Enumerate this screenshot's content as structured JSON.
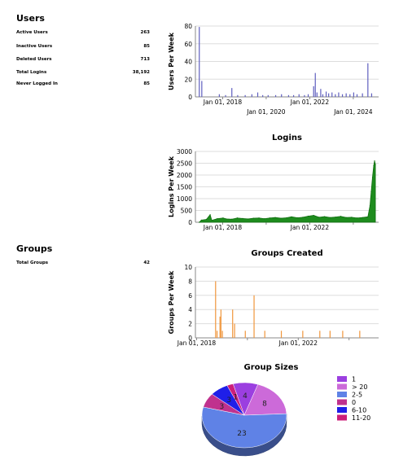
{
  "users": {
    "title": "Users",
    "stats": [
      {
        "label": "Active Users",
        "value": "263"
      },
      {
        "label": "Inactive Users",
        "value": "85"
      },
      {
        "label": "Deleted Users",
        "value": "713"
      },
      {
        "label": "Total Logins",
        "value": "38,192"
      },
      {
        "label": "Never Logged In",
        "value": "85"
      }
    ]
  },
  "groups": {
    "title": "Groups",
    "stats": [
      {
        "label": "Total Groups",
        "value": "42"
      }
    ]
  },
  "chart_data": [
    {
      "type": "bar",
      "title": "",
      "ylabel": "Users Per Week",
      "xlabel": "",
      "ylim": [
        0,
        80
      ],
      "yticks": [
        0,
        20,
        40,
        60,
        80
      ],
      "xticks": [
        "Jan 01, 2018",
        "Jan 01, 2020",
        "Jan 01, 2022",
        "Jan 01, 2024"
      ],
      "x_range": [
        "2016-10-01",
        "2025-03-01"
      ],
      "color": "#5f5fbf",
      "points": [
        [
          "2016-12-05",
          79
        ],
        [
          "2017-01-16",
          18
        ],
        [
          "2017-11-06",
          3
        ],
        [
          "2018-02-19",
          2
        ],
        [
          "2018-06-04",
          10
        ],
        [
          "2018-09-10",
          2
        ],
        [
          "2019-01-14",
          2
        ],
        [
          "2019-05-06",
          3
        ],
        [
          "2019-08-12",
          5
        ],
        [
          "2019-11-04",
          2
        ],
        [
          "2020-02-03",
          2
        ],
        [
          "2020-06-08",
          2
        ],
        [
          "2020-09-14",
          3
        ],
        [
          "2021-01-11",
          2
        ],
        [
          "2021-04-05",
          2
        ],
        [
          "2021-07-05",
          3
        ],
        [
          "2021-10-04",
          2
        ],
        [
          "2021-12-06",
          3
        ],
        [
          "2022-03-07",
          12
        ],
        [
          "2022-04-04",
          27
        ],
        [
          "2022-05-02",
          5
        ],
        [
          "2022-07-04",
          9
        ],
        [
          "2022-08-08",
          3
        ],
        [
          "2022-10-03",
          6
        ],
        [
          "2022-11-14",
          4
        ],
        [
          "2023-01-09",
          5
        ],
        [
          "2023-03-06",
          3
        ],
        [
          "2023-05-01",
          5
        ],
        [
          "2023-07-03",
          3
        ],
        [
          "2023-09-04",
          4
        ],
        [
          "2023-11-06",
          3
        ],
        [
          "2024-01-08",
          5
        ],
        [
          "2024-03-04",
          3
        ],
        [
          "2024-06-03",
          4
        ],
        [
          "2024-09-02",
          38
        ],
        [
          "2024-11-04",
          4
        ]
      ]
    },
    {
      "type": "area",
      "title": "Logins",
      "ylabel": "Logins Per Week",
      "xlabel": "",
      "ylim": [
        0,
        3000
      ],
      "yticks": [
        0,
        500,
        1000,
        1500,
        2000,
        2500,
        3000
      ],
      "xticks": [
        "Jan 01, 2018",
        "Jan 01, 2020",
        "Jan 01, 2022",
        "Jan 01, 2024"
      ],
      "x_range": [
        "2016-10-01",
        "2025-03-01"
      ],
      "color": "#1e8c1e",
      "points": [
        [
          "2016-12-05",
          0
        ],
        [
          "2017-01-09",
          90
        ],
        [
          "2017-04-03",
          120
        ],
        [
          "2017-06-05",
          320
        ],
        [
          "2017-07-03",
          80
        ],
        [
          "2017-10-02",
          150
        ],
        [
          "2018-01-08",
          180
        ],
        [
          "2018-03-05",
          140
        ],
        [
          "2018-06-04",
          130
        ],
        [
          "2018-09-03",
          180
        ],
        [
          "2018-12-03",
          160
        ],
        [
          "2019-03-04",
          140
        ],
        [
          "2019-06-03",
          170
        ],
        [
          "2019-09-02",
          180
        ],
        [
          "2019-12-02",
          150
        ],
        [
          "2020-03-02",
          180
        ],
        [
          "2020-06-01",
          200
        ],
        [
          "2020-09-07",
          170
        ],
        [
          "2020-12-07",
          190
        ],
        [
          "2021-03-01",
          230
        ],
        [
          "2021-06-07",
          190
        ],
        [
          "2021-09-06",
          210
        ],
        [
          "2021-12-06",
          260
        ],
        [
          "2022-03-07",
          290
        ],
        [
          "2022-06-06",
          210
        ],
        [
          "2022-09-05",
          240
        ],
        [
          "2022-12-05",
          200
        ],
        [
          "2023-03-06",
          220
        ],
        [
          "2023-06-05",
          250
        ],
        [
          "2023-09-04",
          200
        ],
        [
          "2023-12-04",
          210
        ],
        [
          "2024-03-04",
          180
        ],
        [
          "2024-06-03",
          200
        ],
        [
          "2024-09-02",
          230
        ],
        [
          "2024-10-07",
          700
        ],
        [
          "2024-10-28",
          1300
        ],
        [
          "2024-11-18",
          1900
        ],
        [
          "2024-12-09",
          2400
        ],
        [
          "2024-12-23",
          2600
        ],
        [
          "2025-01-06",
          2450
        ]
      ]
    },
    {
      "type": "bar",
      "title": "Groups Created",
      "ylabel": "Groups Per Week",
      "xlabel": "",
      "ylim": [
        0,
        10
      ],
      "yticks": [
        0,
        2,
        4,
        6,
        8,
        10
      ],
      "xticks": [
        "Jan 01, 2018",
        "Jan 01, 2020",
        "Jan 01, 2022",
        "Jan 01, 2024"
      ],
      "x_range": [
        "2017-12-15",
        "2025-03-01"
      ],
      "color": "#f0963c",
      "points": [
        [
          "2018-10-01",
          8
        ],
        [
          "2018-10-22",
          1
        ],
        [
          "2018-12-03",
          3
        ],
        [
          "2018-12-17",
          4
        ],
        [
          "2019-01-07",
          1
        ],
        [
          "2019-06-03",
          4
        ],
        [
          "2019-07-01",
          2
        ],
        [
          "2019-12-02",
          1
        ],
        [
          "2020-04-06",
          6
        ],
        [
          "2020-09-07",
          1
        ],
        [
          "2021-05-03",
          1
        ],
        [
          "2022-03-07",
          1
        ],
        [
          "2022-11-07",
          1
        ],
        [
          "2023-04-03",
          1
        ],
        [
          "2023-10-02",
          1
        ],
        [
          "2024-06-03",
          1
        ]
      ]
    },
    {
      "type": "pie",
      "title": "Group Sizes",
      "legend_position": "right",
      "slices": [
        {
          "label": "1",
          "value": 4,
          "color": "#9b3fe0"
        },
        {
          "label": "> 20",
          "value": 8,
          "color": "#cc6ad9"
        },
        {
          "label": "2-5",
          "value": 23,
          "color": "#5f82e6"
        },
        {
          "label": "0",
          "value": 3,
          "color": "#c0318e"
        },
        {
          "label": "6-10",
          "value": 3,
          "color": "#1f1fe8"
        },
        {
          "label": "11-20",
          "value": 1,
          "color": "#cc1e7a"
        }
      ]
    }
  ]
}
